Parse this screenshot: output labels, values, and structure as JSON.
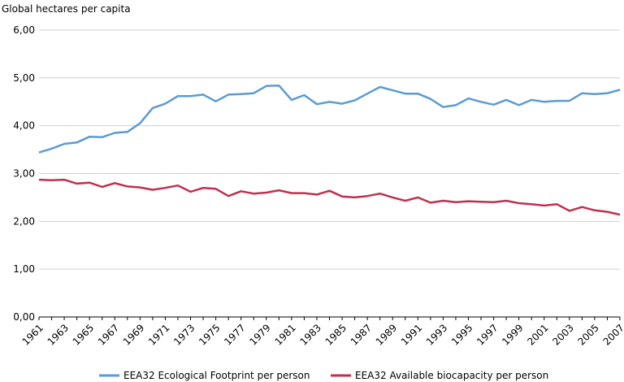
{
  "chart_data": {
    "type": "line",
    "ylabel": "Global hectares per capita",
    "ylim": [
      0,
      6
    ],
    "yticks": [
      "0,00",
      "1,00",
      "2,00",
      "3,00",
      "4,00",
      "5,00",
      "6,00"
    ],
    "xtick_labels": [
      "1961",
      "1963",
      "1965",
      "1967",
      "1969",
      "1971",
      "1973",
      "1975",
      "1977",
      "1979",
      "1981",
      "1983",
      "1985",
      "1987",
      "1989",
      "1991",
      "1993",
      "1995",
      "1997",
      "1999",
      "2001",
      "2003",
      "2005",
      "2007"
    ],
    "x": [
      1961,
      1962,
      1963,
      1964,
      1965,
      1966,
      1967,
      1968,
      1969,
      1970,
      1971,
      1972,
      1973,
      1974,
      1975,
      1976,
      1977,
      1978,
      1979,
      1980,
      1981,
      1982,
      1983,
      1984,
      1985,
      1986,
      1987,
      1988,
      1989,
      1990,
      1991,
      1992,
      1993,
      1994,
      1995,
      1996,
      1997,
      1998,
      1999,
      2000,
      2001,
      2002,
      2003,
      2004,
      2005,
      2006,
      2007
    ],
    "grid": "horizontal",
    "legend_position": "bottom",
    "series": [
      {
        "name": "EEA32 Ecological Footprint per person",
        "color": "#5b9bd5",
        "values": [
          3.44,
          3.52,
          3.62,
          3.65,
          3.77,
          3.76,
          3.85,
          3.87,
          4.05,
          4.37,
          4.46,
          4.62,
          4.62,
          4.65,
          4.51,
          4.65,
          4.66,
          4.68,
          4.83,
          4.84,
          4.54,
          4.64,
          4.45,
          4.5,
          4.46,
          4.53,
          4.67,
          4.81,
          4.74,
          4.67,
          4.67,
          4.56,
          4.39,
          4.43,
          4.57,
          4.5,
          4.44,
          4.54,
          4.43,
          4.54,
          4.5,
          4.52,
          4.52,
          4.68,
          4.66,
          4.68,
          4.75
        ]
      },
      {
        "name": "EEA32 Available biocapacity per person",
        "color": "#c0304e",
        "values": [
          2.87,
          2.86,
          2.87,
          2.79,
          2.81,
          2.72,
          2.8,
          2.73,
          2.71,
          2.66,
          2.7,
          2.75,
          2.62,
          2.7,
          2.68,
          2.53,
          2.63,
          2.58,
          2.6,
          2.65,
          2.59,
          2.59,
          2.56,
          2.64,
          2.52,
          2.5,
          2.53,
          2.58,
          2.5,
          2.43,
          2.5,
          2.39,
          2.43,
          2.4,
          2.42,
          2.41,
          2.4,
          2.43,
          2.38,
          2.36,
          2.33,
          2.36,
          2.22,
          2.3,
          2.23,
          2.2,
          2.14
        ]
      }
    ]
  }
}
